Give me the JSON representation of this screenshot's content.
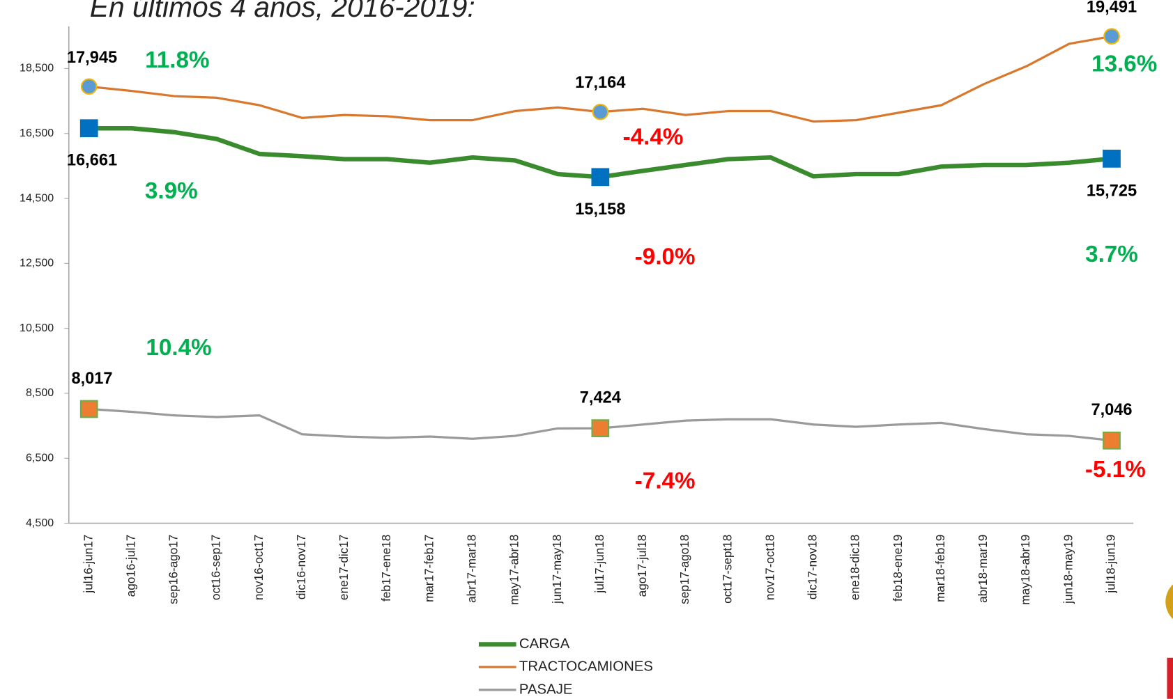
{
  "chart_data": {
    "type": "line",
    "title": "En últimos 4 años, 2016-2019:",
    "categories": [
      "jul16-jun17",
      "ago16-jul17",
      "sep16-ago17",
      "oct16-sep17",
      "nov16-oct17",
      "dic16-nov17",
      "ene17-dic17",
      "feb17-ene18",
      "mar17-feb17",
      "abr17-mar18",
      "may17-abr18",
      "jun17-may18",
      "jul17-jun18",
      "ago17-jul18",
      "sep17-ago18",
      "oct17-sept18",
      "nov17-oct18",
      "dic17-nov18",
      "ene18-dic18",
      "feb18-ene19",
      "mar18-feb19",
      "abr18-mar19",
      "may18-abr19",
      "jun18-may19",
      "jul18-jun19"
    ],
    "ylim": [
      4500,
      19800
    ],
    "yticks": [
      {
        "value": 4500,
        "label": "4,500"
      },
      {
        "value": 6500,
        "label": "6,500"
      },
      {
        "value": 8500,
        "label": "8,500"
      },
      {
        "value": 10500,
        "label": "10,500"
      },
      {
        "value": 12500,
        "label": "12,500"
      },
      {
        "value": 14500,
        "label": "14,500"
      },
      {
        "value": 16500,
        "label": "16,500"
      },
      {
        "value": 18500,
        "label": "18,500"
      }
    ],
    "grid": false,
    "legend": "bottom",
    "series": [
      {
        "name": "CARGA",
        "color": "#3a8a2e",
        "marker": {
          "shape": "square",
          "color": "#0070c0",
          "edge": "#0070c0"
        },
        "values": [
          16661,
          16660,
          16540,
          16330,
          15870,
          15800,
          15710,
          15710,
          15600,
          15760,
          15670,
          15250,
          15158,
          15350,
          15530,
          15710,
          15760,
          15180,
          15250,
          15250,
          15480,
          15530,
          15530,
          15600,
          15725
        ],
        "value_labels": [
          "16,661",
          null,
          null,
          null,
          null,
          null,
          null,
          null,
          null,
          null,
          null,
          null,
          "15,158",
          null,
          null,
          null,
          null,
          null,
          null,
          null,
          null,
          null,
          null,
          null,
          "15,725"
        ]
      },
      {
        "name": "TRACTOCAMIONES",
        "color": "#d9782d",
        "marker": {
          "shape": "circle",
          "color": "#5b9bd5",
          "edge": "#f2b705"
        },
        "values": [
          17945,
          17810,
          17650,
          17600,
          17370,
          16980,
          17070,
          17030,
          16910,
          16910,
          17190,
          17300,
          17164,
          17260,
          17070,
          17190,
          17190,
          16870,
          16910,
          17140,
          17370,
          18020,
          18570,
          19260,
          19491
        ],
        "value_labels": [
          "17,945",
          null,
          null,
          null,
          null,
          null,
          null,
          null,
          null,
          null,
          null,
          null,
          "17,164",
          null,
          null,
          null,
          null,
          null,
          null,
          null,
          null,
          null,
          null,
          null,
          "19,491"
        ]
      },
      {
        "name": "PASAJE",
        "color": "#9a9a9a",
        "marker": {
          "shape": "square",
          "color": "#ed7d31",
          "edge": "#70ad47"
        },
        "values": [
          8017,
          7930,
          7820,
          7770,
          7820,
          7240,
          7170,
          7130,
          7170,
          7100,
          7190,
          7420,
          7424,
          7540,
          7660,
          7700,
          7700,
          7540,
          7470,
          7540,
          7590,
          7400,
          7240,
          7190,
          7046
        ],
        "value_labels": [
          "8,017",
          null,
          null,
          null,
          null,
          null,
          null,
          null,
          null,
          null,
          null,
          null,
          "7,424",
          null,
          null,
          null,
          null,
          null,
          null,
          null,
          null,
          null,
          null,
          null,
          "7,046"
        ]
      }
    ],
    "annotations": [
      {
        "text": "11.8%",
        "color": "#00b050"
      },
      {
        "text": "13.6%",
        "color": "#00b050"
      },
      {
        "text": "-4.4%",
        "color": "#ff0000"
      },
      {
        "text": "3.9%",
        "color": "#00b050"
      },
      {
        "text": "-9.0%",
        "color": "#ff0000"
      },
      {
        "text": "3.7%",
        "color": "#00b050"
      },
      {
        "text": "10.4%",
        "color": "#00b050"
      },
      {
        "text": "-7.4%",
        "color": "#ff0000"
      },
      {
        "text": "-5.1%",
        "color": "#ff0000"
      }
    ]
  }
}
